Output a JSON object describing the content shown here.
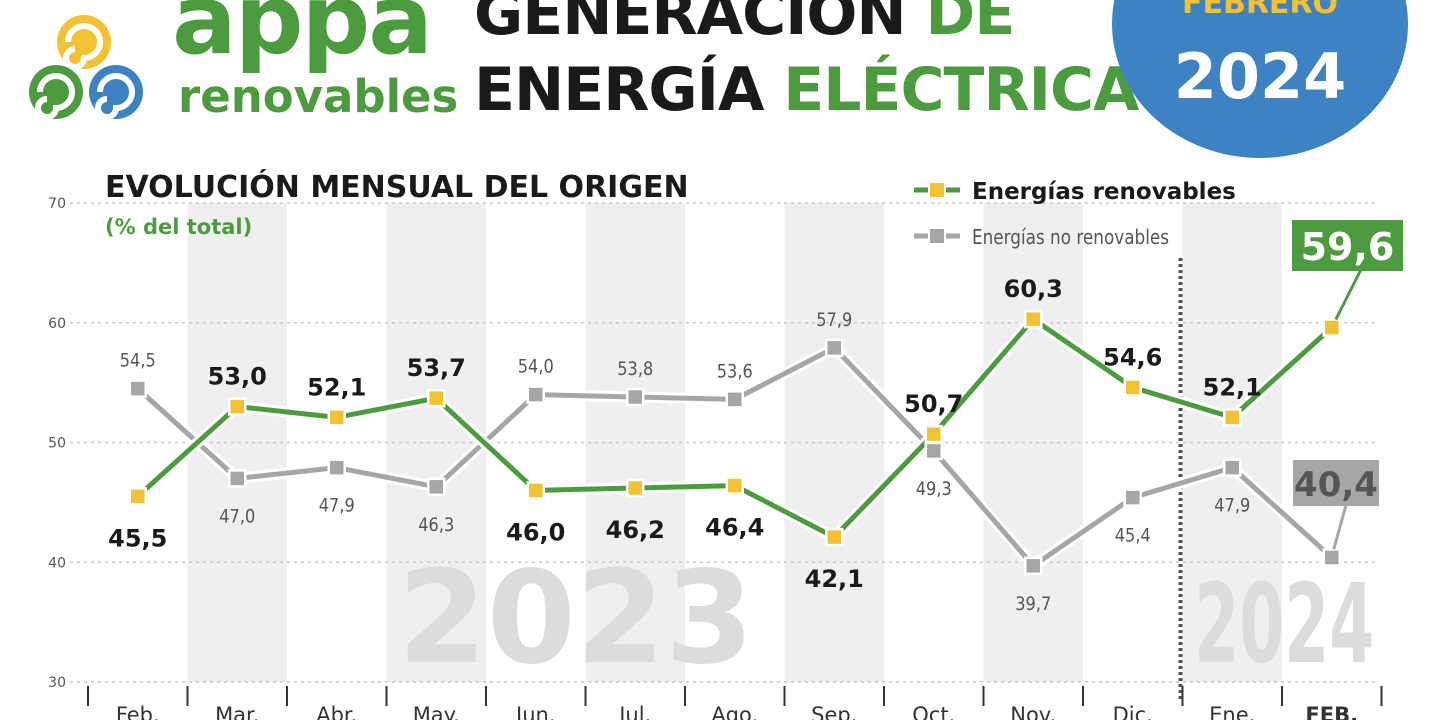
{
  "header": {
    "logo_word": "appa",
    "logo_sub": "renovables",
    "title_line1_black": "GENERACIÓN",
    "title_line1_green": "DE",
    "title_line2_black": "ENERGÍA",
    "title_line2_green": "ELÉCTRICA",
    "month": "FEBRERO",
    "year": "2024"
  },
  "colors": {
    "renewable": "#4c9b3f",
    "non_renewable": "#a6a6a6",
    "marker": "#f3c232",
    "badge_blue": "#3d82c3"
  },
  "chart_data": {
    "type": "line",
    "title": "EVOLUCIÓN MENSUAL DEL ORIGEN",
    "subtitle": "(% del total)",
    "categories": [
      "Feb.",
      "Mar.",
      "Abr.",
      "May.",
      "Jun.",
      "Jul.",
      "Ago.",
      "Sep.",
      "Oct.",
      "Nov.",
      "Dic.",
      "Ene.",
      "FEB."
    ],
    "ylim": [
      30,
      70
    ],
    "yticks": [
      "30",
      "40",
      "50",
      "60",
      "70"
    ],
    "grid": true,
    "legend_position": "top-right",
    "year_labels": [
      "2023",
      "2024"
    ],
    "series": [
      {
        "name": "Energías renovables",
        "values": [
          45.5,
          53.0,
          52.1,
          53.7,
          46.0,
          46.2,
          46.4,
          42.1,
          50.7,
          60.3,
          54.6,
          52.1,
          59.6
        ],
        "labels": [
          "45,5",
          "53,0",
          "52,1",
          "53,7",
          "46,0",
          "46,2",
          "46,4",
          "42,1",
          "50,7",
          "60,3",
          "54,6",
          "52,1",
          "59,6"
        ]
      },
      {
        "name": "Energías no renovables",
        "values": [
          54.5,
          47.0,
          47.9,
          46.3,
          54.0,
          53.8,
          53.6,
          57.9,
          49.3,
          39.7,
          45.4,
          47.9,
          40.4
        ],
        "labels": [
          "54,5",
          "47,0",
          "47,9",
          "46,3",
          "54,0",
          "53,8",
          "53,6",
          "57,9",
          "49,3",
          "39,7",
          "45,4",
          "47,9",
          "40,4"
        ]
      }
    ]
  }
}
